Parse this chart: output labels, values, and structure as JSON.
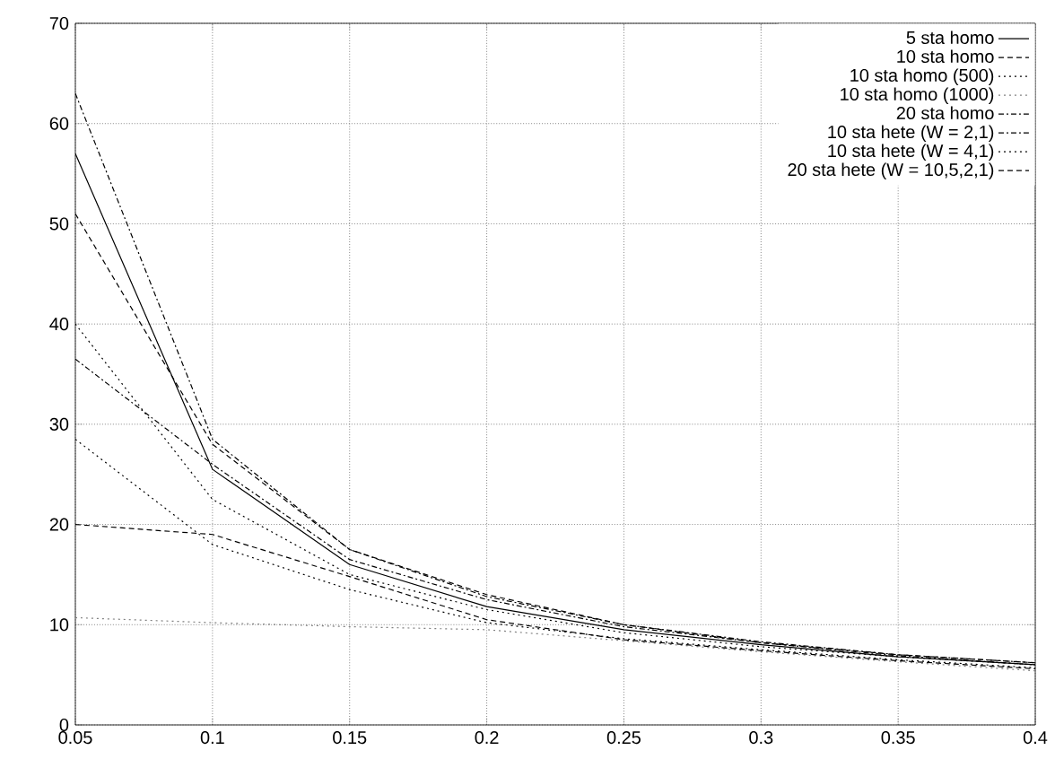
{
  "chart_data": {
    "type": "line",
    "x": [
      0.05,
      0.1,
      0.15,
      0.2,
      0.25,
      0.3,
      0.35,
      0.4
    ],
    "series": [
      {
        "name": "5 sta homo",
        "color": "#000000",
        "line_style": "solid",
        "values": [
          57,
          25.5,
          16,
          11.8,
          9.5,
          8,
          6.8,
          6.0
        ]
      },
      {
        "name": "10 sta homo",
        "color": "#000000",
        "line_style": "dashed",
        "values": [
          51,
          28,
          17.5,
          13,
          10,
          8.2,
          7,
          6.2
        ]
      },
      {
        "name": "10 sta homo (500)",
        "color": "#000000",
        "line_style": "dotted",
        "values": [
          40,
          22.5,
          15,
          11.5,
          9.2,
          7.8,
          6.8,
          6.0
        ]
      },
      {
        "name": "10 sta homo (1000)",
        "color": "#808080",
        "line_style": "dotted",
        "values": [
          10.7,
          10.2,
          9.8,
          9.5,
          8.4,
          7.3,
          6.3,
          5.4
        ]
      },
      {
        "name": "20 sta homo",
        "color": "#000000",
        "line_style": "dashdot",
        "values": [
          63,
          28.5,
          17.5,
          12.8,
          10,
          8.3,
          7,
          6.2
        ]
      },
      {
        "name": "10 sta hete (W = 2,1)",
        "color": "#000000",
        "line_style": "dashdot",
        "values": [
          36.5,
          26,
          16.5,
          12.5,
          9.8,
          8.2,
          6.9,
          6.0
        ]
      },
      {
        "name": "10 sta hete (W = 4,1)",
        "color": "#000000",
        "line_style": "dotted",
        "values": [
          28.5,
          18,
          13.5,
          10.2,
          8.6,
          7.5,
          6.5,
          5.7
        ]
      },
      {
        "name": "20 sta hete (W = 10,5,2,1)",
        "color": "#000000",
        "line_style": "dashed",
        "values": [
          20,
          19,
          14.8,
          10.5,
          8.5,
          7.4,
          6.4,
          5.6
        ]
      }
    ],
    "xlim": [
      0.05,
      0.4
    ],
    "ylim": [
      0,
      70
    ],
    "xticks": [
      0.05,
      0.1,
      0.15,
      0.2,
      0.25,
      0.3,
      0.35,
      0.4
    ],
    "yticks": [
      0,
      10,
      20,
      30,
      40,
      50,
      60,
      70
    ],
    "grid": true,
    "legend": "top right",
    "marker": "none"
  }
}
